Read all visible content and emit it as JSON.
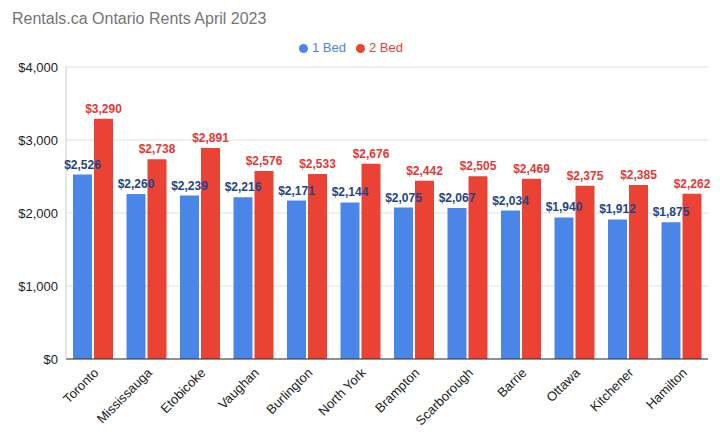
{
  "chart_data": {
    "type": "bar",
    "title": "Rentals.ca Ontario Rents April 2023",
    "categories": [
      "Toronto",
      "Mississauga",
      "Etobicoke",
      "Vaughan",
      "Burlington",
      "North York",
      "Brampton",
      "Scarborough",
      "Barrie",
      "Ottawa",
      "Kitchener",
      "Hamilton"
    ],
    "series": [
      {
        "name": "1 Bed",
        "color": "#4a86e8",
        "values": [
          2526,
          2260,
          2239,
          2216,
          2171,
          2144,
          2075,
          2067,
          2034,
          1940,
          1912,
          1875
        ],
        "value_labels": [
          "$2,526",
          "$2,260",
          "$2,239",
          "$2,216",
          "$2,171",
          "$2,144",
          "$2,075",
          "$2,067",
          "$2,034",
          "$1,940",
          "$1,912",
          "$1,875"
        ]
      },
      {
        "name": "2 Bed",
        "color": "#ea4335",
        "values": [
          3290,
          2738,
          2891,
          2576,
          2533,
          2676,
          2442,
          2505,
          2469,
          2375,
          2385,
          2262
        ],
        "value_labels": [
          "$3,290",
          "$2,738",
          "$2,891",
          "$2,576",
          "$2,533",
          "$2,676",
          "$2,442",
          "$2,505",
          "$2,469",
          "$2,375",
          "$2,385",
          "$2,262"
        ]
      }
    ],
    "ylim": [
      0,
      4000
    ],
    "yticks": [
      {
        "value": 0,
        "label": "$0"
      },
      {
        "value": 1000,
        "label": "$1,000"
      },
      {
        "value": 2000,
        "label": "$2,000"
      },
      {
        "value": 3000,
        "label": "$3,000"
      },
      {
        "value": 4000,
        "label": "$4,000"
      }
    ],
    "grid": true,
    "legend": "top",
    "data_labels": true
  }
}
